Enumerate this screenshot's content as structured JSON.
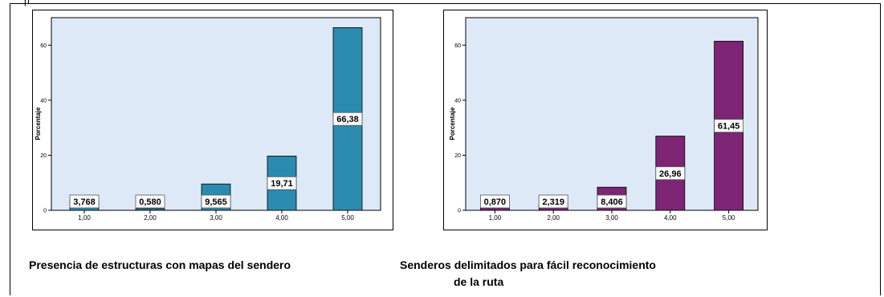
{
  "top_text": "p",
  "chart_data": [
    {
      "type": "bar",
      "categories": [
        "1,00",
        "2,00",
        "3,00",
        "4,00",
        "5,00"
      ],
      "values": [
        3.768,
        0.58,
        9.565,
        19.71,
        66.38
      ],
      "data_labels": [
        "3,768",
        "0,580",
        "9,565",
        "19,71",
        "66,38"
      ],
      "ylabel": "Porcentaje",
      "xlabel": "",
      "yticks": [
        "0",
        "20",
        "40",
        "60"
      ],
      "ytick_values": [
        0,
        20,
        40,
        60
      ],
      "ylim": [
        0,
        70
      ],
      "color": "#2a8bae",
      "plot_background": "#dde9f7",
      "grid": false,
      "caption": "Presencia de estructuras con mapas del sendero"
    },
    {
      "type": "bar",
      "categories": [
        "1,00",
        "2,00",
        "3,00",
        "4,00",
        "5,00"
      ],
      "values": [
        0.87,
        2.319,
        8.406,
        26.96,
        61.45
      ],
      "data_labels": [
        "0,870",
        "2,319",
        "8,406",
        "26,96",
        "61,45"
      ],
      "ylabel": "Porcentaje",
      "xlabel": "",
      "yticks": [
        "0",
        "20",
        "40",
        "60"
      ],
      "ytick_values": [
        0,
        20,
        40,
        60
      ],
      "ylim": [
        0,
        70
      ],
      "color": "#7d2474",
      "plot_background": "#dde9f7",
      "grid": false,
      "caption_lines": [
        "Senderos delimitados para fácil reconocimiento",
        "de la ruta"
      ]
    }
  ]
}
